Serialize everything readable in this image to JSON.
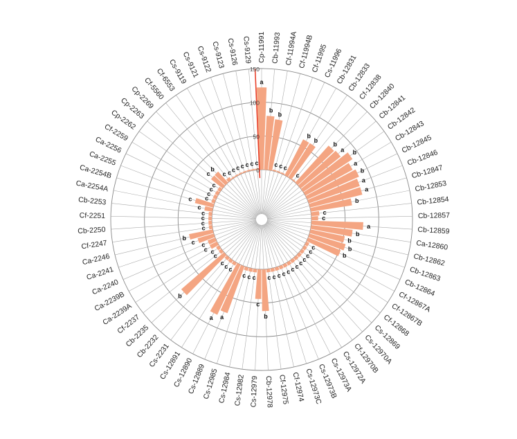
{
  "chart_data": {
    "type": "bar",
    "layout": "circular",
    "title": "",
    "xlabel": "",
    "ylabel": "",
    "ylim": [
      0,
      150
    ],
    "ticks": [
      0,
      50,
      100,
      150
    ],
    "grid": true,
    "colors": {
      "bar": "#f4a582",
      "highlight": "#e8402a",
      "axis": "#888888",
      "spoke": "#aaaaaa"
    },
    "categories": [
      "Cp-11991",
      "Cb-11993",
      "Cf-11994A",
      "Cf-11994B",
      "Cf-11995",
      "Cs-11996",
      "Cb-12831",
      "Cb-12833",
      "Cf-12838",
      "Cb-12840",
      "Cb-12841",
      "Cb-12842",
      "Cb-12843",
      "Cb-12845",
      "Cb-12846",
      "Cb-12847",
      "Cb-12853",
      "Cb-12854",
      "Cb-12857",
      "Cb-12859",
      "Ca-12860",
      "Cb-12862",
      "Cb-12863",
      "Cb-12864",
      "Cf-12867A",
      "Cf-12867B",
      "Cf-12868",
      "Cs-12869",
      "Cs-12970A",
      "Cf-12970B",
      "Cs-12972A",
      "Cs-12973A",
      "Cs-12973B",
      "Cs-12973C",
      "Cf-12974",
      "Cf-12975",
      "Cb-12978",
      "Cs-12979",
      "Cs-12982",
      "Cs-12984",
      "Cs-12985",
      "Cs-12889",
      "Cs-12890",
      "Cs-12891",
      "Cs-2231",
      "Cb-2232",
      "Cb-2235",
      "Cf-2237",
      "Ca-2239A",
      "Ca-2239B",
      "Ca-2240",
      "Ca-2241",
      "Ca-2246",
      "Cf-2247",
      "Cb-2250",
      "Cf-2251",
      "Cb-2253",
      "Ca-2254A",
      "Ca-2254B",
      "Ca-2255",
      "Ca-2256",
      "Cf-2259",
      "Cp-2262",
      "Cp-2263",
      "Cp-2269",
      "Cf-5560",
      "Cf-6553",
      "Cs-9119",
      "Cs-9121",
      "Cs-9122",
      "Cs-9123",
      "Cs-9126",
      "Cs-9129"
    ],
    "values": [
      122,
      80,
      76,
      2,
      2,
      2,
      60,
      60,
      2,
      74,
      76,
      88,
      80,
      84,
      80,
      80,
      62,
      12,
      10,
      77,
      62,
      52,
      56,
      52,
      5,
      5,
      5,
      5,
      5,
      5,
      5,
      5,
      5,
      5,
      5,
      5,
      62,
      44,
      5,
      5,
      5,
      74,
      82,
      5,
      5,
      5,
      84,
      5,
      5,
      12,
      12,
      25,
      36,
      5,
      5,
      5,
      5,
      12,
      28,
      5,
      5,
      5,
      5,
      22,
      22,
      5,
      2,
      2,
      2,
      2,
      2,
      2,
      2
    ],
    "groups": [
      "a",
      "b",
      "b",
      "c",
      "c",
      "c",
      "b",
      "b",
      "c",
      "b",
      "a",
      "b",
      "a",
      "b",
      "a",
      "a",
      "b",
      "c",
      "c",
      "a",
      "b",
      "b",
      "b",
      "b",
      "c",
      "c",
      "c",
      "c",
      "c",
      "c",
      "c",
      "c",
      "c",
      "c",
      "c",
      "c",
      "b",
      "c",
      "c",
      "c",
      "c",
      "a",
      "a",
      "c",
      "c",
      "c",
      "b",
      "c",
      "c",
      "c",
      "c",
      "c",
      "b",
      "c",
      "c",
      "c",
      "c",
      "c",
      "c",
      "c",
      "c",
      "c",
      "c",
      "c",
      "b",
      "c",
      "c",
      "c",
      "c",
      "c",
      "c",
      "c",
      "c"
    ],
    "highlight": {
      "category": "Cs-9129",
      "value": 150
    }
  }
}
